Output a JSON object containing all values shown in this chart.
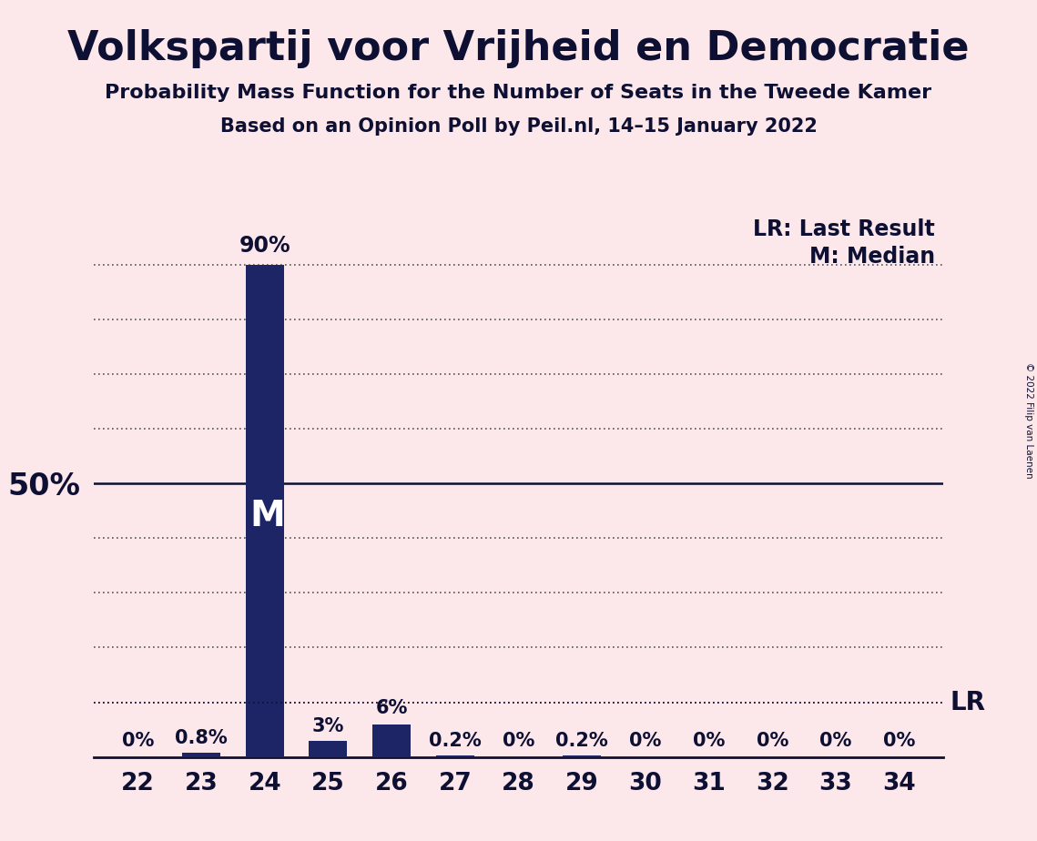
{
  "title": "Volkspartij voor Vrijheid en Democratie",
  "subtitle1": "Probability Mass Function for the Number of Seats in the Tweede Kamer",
  "subtitle2": "Based on an Opinion Poll by Peil.nl, 14–15 January 2022",
  "copyright": "© 2022 Filip van Laenen",
  "categories": [
    22,
    23,
    24,
    25,
    26,
    27,
    28,
    29,
    30,
    31,
    32,
    33,
    34
  ],
  "values": [
    0.0,
    0.8,
    90.0,
    3.0,
    6.0,
    0.2,
    0.0,
    0.2,
    0.0,
    0.0,
    0.0,
    0.0,
    0.0
  ],
  "bar_color": "#1e2566",
  "background_color": "#fce8ea",
  "text_color": "#0d1033",
  "median_seat": 24,
  "median_label": "M",
  "lr_value": 10.0,
  "lr_label": "LR",
  "lr_legend": "LR: Last Result",
  "m_legend": "M: Median",
  "ylabel_50": "50%",
  "ylim": [
    0,
    100
  ],
  "bar_labels": [
    "0%",
    "0.8%",
    "90%",
    "3%",
    "6%",
    "0.2%",
    "0%",
    "0.2%",
    "0%",
    "0%",
    "0%",
    "0%",
    "0%"
  ],
  "dotted_gridline_color": "#555555",
  "solid_line_color": "#0d1033",
  "lr_line_color": "#0d1033",
  "title_fontsize": 32,
  "subtitle_fontsize": 16,
  "tick_fontsize": 19,
  "label_fontsize": 15,
  "legend_fontsize": 17,
  "ylabel_fontsize": 24
}
